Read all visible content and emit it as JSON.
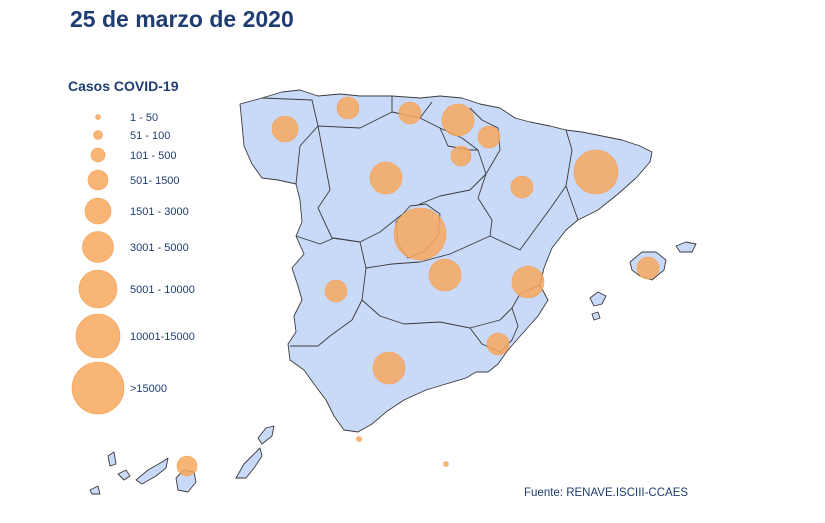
{
  "title": "25 de marzo de 2020",
  "legend": {
    "title": "Casos COVID-19",
    "items": [
      {
        "label": "1 - 50"
      },
      {
        "label": "51 - 100"
      },
      {
        "label": "101 - 500"
      },
      {
        "label": "501- 1500"
      },
      {
        "label": "1501 - 3000"
      },
      {
        "label": "3001 - 5000"
      },
      {
        "label": "5001 - 10000"
      },
      {
        "label": "10001-15000"
      },
      {
        "label": ">15000"
      }
    ]
  },
  "source": "Fuente: RENAVE.ISCIII-CCAES",
  "colors": {
    "land": "#c9d9f8",
    "bubble": "#f7a85e",
    "text": "#1f3d73"
  }
}
